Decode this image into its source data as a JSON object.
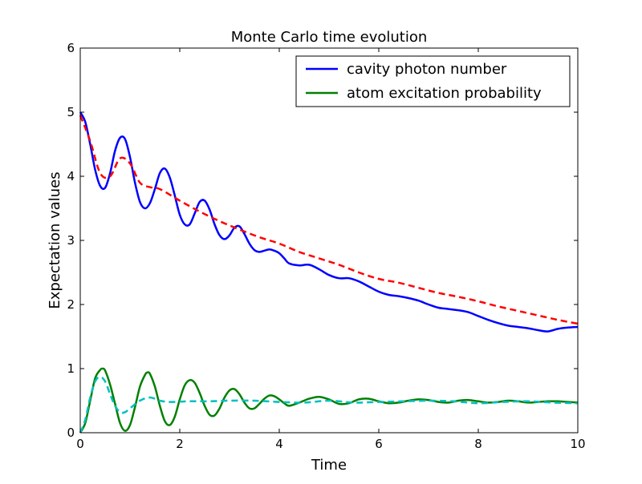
{
  "chart_data": {
    "type": "line",
    "title": "Monte Carlo time evolution",
    "xlabel": "Time",
    "ylabel": "Expectation values",
    "xlim": [
      0,
      10
    ],
    "ylim": [
      0,
      6
    ],
    "xticks": [
      "0",
      "2",
      "4",
      "6",
      "8",
      "10"
    ],
    "yticks": [
      "0",
      "1",
      "2",
      "3",
      "4",
      "5",
      "6"
    ],
    "grid": false,
    "legend_position": "top-right",
    "series": [
      {
        "name": "cavity photon number",
        "color": "#0000ff",
        "style": "solid",
        "x": [
          0,
          0.1,
          0.2,
          0.3,
          0.4,
          0.5,
          0.6,
          0.7,
          0.8,
          0.9,
          1.0,
          1.1,
          1.2,
          1.3,
          1.4,
          1.5,
          1.6,
          1.7,
          1.8,
          1.9,
          2.0,
          2.1,
          2.2,
          2.3,
          2.4,
          2.5,
          2.6,
          2.7,
          2.8,
          2.9,
          3.0,
          3.1,
          3.2,
          3.3,
          3.4,
          3.5,
          3.6,
          3.7,
          3.8,
          3.9,
          4.0,
          4.1,
          4.2,
          4.4,
          4.6,
          4.8,
          5.0,
          5.2,
          5.4,
          5.6,
          5.8,
          6.0,
          6.2,
          6.4,
          6.6,
          6.8,
          7.0,
          7.2,
          7.4,
          7.6,
          7.8,
          8.0,
          8.2,
          8.4,
          8.6,
          8.8,
          9.0,
          9.2,
          9.4,
          9.6,
          9.8,
          10.0
        ],
        "values": [
          5.0,
          4.85,
          4.5,
          4.1,
          3.85,
          3.82,
          4.05,
          4.4,
          4.6,
          4.58,
          4.3,
          3.9,
          3.6,
          3.5,
          3.58,
          3.8,
          4.05,
          4.12,
          3.98,
          3.7,
          3.4,
          3.25,
          3.25,
          3.42,
          3.6,
          3.62,
          3.48,
          3.25,
          3.08,
          3.02,
          3.08,
          3.2,
          3.22,
          3.1,
          2.95,
          2.85,
          2.82,
          2.84,
          2.86,
          2.84,
          2.8,
          2.72,
          2.64,
          2.61,
          2.62,
          2.55,
          2.46,
          2.41,
          2.41,
          2.36,
          2.28,
          2.2,
          2.15,
          2.13,
          2.1,
          2.06,
          2.0,
          1.95,
          1.93,
          1.91,
          1.88,
          1.82,
          1.76,
          1.71,
          1.67,
          1.65,
          1.63,
          1.6,
          1.58,
          1.62,
          1.64,
          1.65
        ]
      },
      {
        "name": "atom excitation probability",
        "color": "#008000",
        "style": "solid",
        "x": [
          0,
          0.1,
          0.2,
          0.3,
          0.4,
          0.45,
          0.5,
          0.6,
          0.7,
          0.8,
          0.9,
          1.0,
          1.1,
          1.2,
          1.3,
          1.35,
          1.4,
          1.5,
          1.6,
          1.7,
          1.8,
          1.9,
          2.0,
          2.1,
          2.2,
          2.3,
          2.4,
          2.5,
          2.6,
          2.7,
          2.8,
          2.9,
          3.0,
          3.1,
          3.2,
          3.3,
          3.4,
          3.5,
          3.6,
          3.7,
          3.8,
          3.9,
          4.0,
          4.1,
          4.2,
          4.4,
          4.6,
          4.8,
          5.0,
          5.2,
          5.4,
          5.6,
          5.8,
          6.0,
          6.2,
          6.4,
          6.6,
          6.8,
          7.0,
          7.2,
          7.4,
          7.6,
          7.8,
          8.0,
          8.2,
          8.4,
          8.6,
          8.8,
          9.0,
          9.2,
          9.4,
          9.6,
          9.8,
          10.0
        ],
        "values": [
          0.0,
          0.15,
          0.5,
          0.85,
          0.98,
          1.0,
          0.97,
          0.75,
          0.45,
          0.15,
          0.03,
          0.12,
          0.4,
          0.72,
          0.9,
          0.94,
          0.92,
          0.72,
          0.42,
          0.18,
          0.12,
          0.25,
          0.52,
          0.74,
          0.82,
          0.78,
          0.62,
          0.42,
          0.28,
          0.27,
          0.38,
          0.55,
          0.66,
          0.68,
          0.6,
          0.47,
          0.38,
          0.38,
          0.45,
          0.53,
          0.58,
          0.57,
          0.52,
          0.46,
          0.42,
          0.47,
          0.53,
          0.56,
          0.52,
          0.45,
          0.46,
          0.52,
          0.53,
          0.49,
          0.46,
          0.47,
          0.5,
          0.52,
          0.51,
          0.48,
          0.47,
          0.5,
          0.51,
          0.49,
          0.47,
          0.48,
          0.5,
          0.49,
          0.47,
          0.48,
          0.49,
          0.49,
          0.48,
          0.47
        ]
      },
      {
        "name": "",
        "color": "#ff0000",
        "style": "dashed",
        "x": [
          0,
          0.2,
          0.4,
          0.6,
          0.8,
          1.0,
          1.2,
          1.4,
          1.6,
          2.0,
          2.4,
          2.8,
          3.2,
          3.6,
          4.0,
          4.4,
          4.8,
          5.2,
          5.6,
          6.0,
          6.4,
          6.8,
          7.2,
          7.6,
          8.0,
          8.4,
          8.8,
          9.2,
          9.6,
          10.0
        ],
        "values": [
          4.95,
          4.55,
          4.05,
          4.0,
          4.28,
          4.2,
          3.9,
          3.83,
          3.8,
          3.62,
          3.45,
          3.3,
          3.17,
          3.05,
          2.95,
          2.82,
          2.72,
          2.62,
          2.5,
          2.4,
          2.34,
          2.26,
          2.18,
          2.12,
          2.05,
          1.97,
          1.9,
          1.83,
          1.76,
          1.7
        ]
      },
      {
        "name": "",
        "color": "#00bfbf",
        "style": "dashed",
        "x": [
          0,
          0.1,
          0.2,
          0.3,
          0.4,
          0.5,
          0.6,
          0.7,
          0.8,
          0.9,
          1.0,
          1.2,
          1.4,
          1.6,
          1.8,
          2.2,
          2.6,
          3.0,
          3.5,
          4.0,
          4.5,
          5.0,
          5.5,
          6.0,
          6.5,
          7.0,
          7.5,
          8.0,
          8.5,
          9.0,
          9.5,
          10.0
        ],
        "values": [
          0.0,
          0.2,
          0.55,
          0.8,
          0.87,
          0.8,
          0.6,
          0.42,
          0.32,
          0.32,
          0.38,
          0.5,
          0.55,
          0.5,
          0.48,
          0.49,
          0.49,
          0.5,
          0.5,
          0.48,
          0.47,
          0.5,
          0.47,
          0.48,
          0.49,
          0.5,
          0.49,
          0.46,
          0.48,
          0.49,
          0.47,
          0.46
        ]
      }
    ]
  }
}
